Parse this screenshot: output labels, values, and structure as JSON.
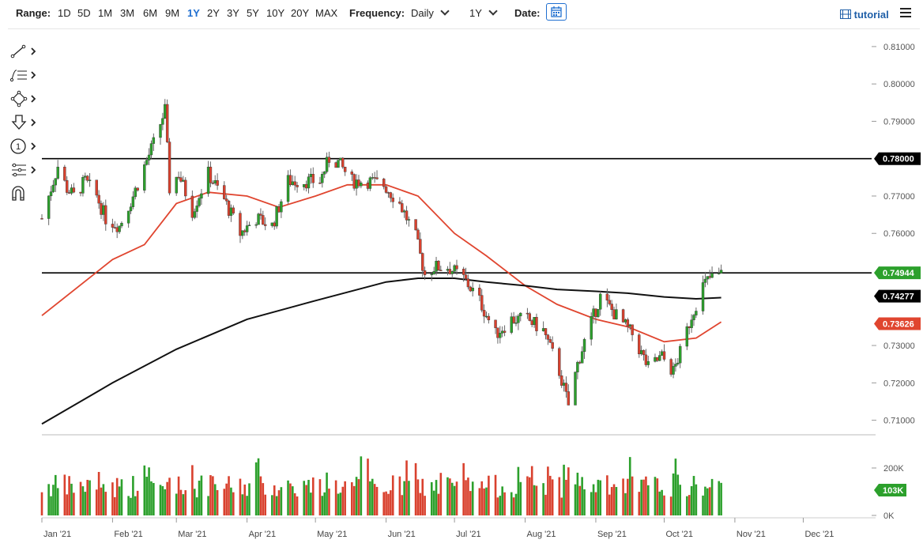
{
  "toolbar": {
    "range_label": "Range:",
    "ranges": [
      "1D",
      "5D",
      "1M",
      "3M",
      "6M",
      "9M",
      "1Y",
      "2Y",
      "3Y",
      "5Y",
      "10Y",
      "20Y",
      "MAX"
    ],
    "active_range": "1Y",
    "frequency_label": "Frequency:",
    "frequency_value": "Daily",
    "period_value": "1Y",
    "date_label": "Date:",
    "tutorial_label": "tutorial"
  },
  "tools": [
    "line-tool-icon",
    "fibonacci-tool-icon",
    "shapes-tool-icon",
    "arrow-tool-icon",
    "annotation-tool-icon",
    "measure-tool-icon",
    "magnet-icon"
  ],
  "colors": {
    "up": "#2ca02c",
    "down": "#d9412e",
    "ma_short": "#e0452f",
    "ma_long": "#111111",
    "level": "#000000",
    "volume_badge": "#2ca02c"
  },
  "chart_data": {
    "type": "candlestick",
    "title": "",
    "frequency": "Daily",
    "range": "1Y",
    "x_ticks": [
      "Jan '21",
      "Feb '21",
      "Mar '21",
      "Apr '21",
      "May '21",
      "Jun '21",
      "Jul '21",
      "Aug '21",
      "Sep '21",
      "Oct '21",
      "Nov '21",
      "Dec '21"
    ],
    "y_ticks": [
      "0.81000",
      "0.80000",
      "0.79000",
      "0.77000",
      "0.76000",
      "0.73000",
      "0.72000",
      "0.71000"
    ],
    "ylim": [
      0.7061,
      0.814
    ],
    "horizontal_levels": [
      0.78,
      0.74944
    ],
    "badges": [
      {
        "label": "0.78000",
        "value": 0.78,
        "color": "#000000"
      },
      {
        "label": "0.74944",
        "value": 0.74944,
        "color": "#2ca02c"
      },
      {
        "label": "0.74277",
        "value": 0.74277,
        "color": "#000000"
      },
      {
        "label": "0.73626",
        "value": 0.73626,
        "color": "#e0452f"
      }
    ],
    "close_series": {
      "dates": [
        "2021-01-01",
        "2021-01-04",
        "2021-01-08",
        "2021-01-12",
        "2021-01-15",
        "2021-01-20",
        "2021-01-25",
        "2021-01-29",
        "2021-02-04",
        "2021-02-10",
        "2021-02-15",
        "2021-02-19",
        "2021-02-24",
        "2021-02-26",
        "2021-03-02",
        "2021-03-08",
        "2021-03-15",
        "2021-03-22",
        "2021-03-29",
        "2021-04-05",
        "2021-04-12",
        "2021-04-19",
        "2021-04-26",
        "2021-05-03",
        "2021-05-07",
        "2021-05-11",
        "2021-05-17",
        "2021-05-24",
        "2021-05-31",
        "2021-06-07",
        "2021-06-14",
        "2021-06-18",
        "2021-06-22",
        "2021-06-28",
        "2021-07-05",
        "2021-07-12",
        "2021-07-19",
        "2021-07-26",
        "2021-08-02",
        "2021-08-09",
        "2021-08-16",
        "2021-08-20",
        "2021-08-24",
        "2021-08-27",
        "2021-09-03",
        "2021-09-10",
        "2021-09-17",
        "2021-09-24",
        "2021-09-30",
        "2021-10-05",
        "2021-10-08",
        "2021-10-13",
        "2021-10-18",
        "2021-10-21",
        "2021-10-26"
      ],
      "values": [
        0.764,
        0.77,
        0.778,
        0.772,
        0.77,
        0.774,
        0.77,
        0.764,
        0.762,
        0.77,
        0.778,
        0.784,
        0.793,
        0.772,
        0.776,
        0.766,
        0.776,
        0.769,
        0.76,
        0.764,
        0.762,
        0.774,
        0.774,
        0.774,
        0.78,
        0.779,
        0.774,
        0.774,
        0.773,
        0.768,
        0.759,
        0.749,
        0.751,
        0.751,
        0.748,
        0.742,
        0.733,
        0.737,
        0.737,
        0.734,
        0.723,
        0.714,
        0.725,
        0.731,
        0.743,
        0.738,
        0.733,
        0.724,
        0.727,
        0.723,
        0.728,
        0.738,
        0.746,
        0.748,
        0.749
      ]
    },
    "series": [
      {
        "name": "",
        "type": "moving-average-short",
        "color": "#e0452f",
        "dates": [
          "2021-01-01",
          "2021-02-01",
          "2021-02-15",
          "2021-03-01",
          "2021-03-15",
          "2021-04-01",
          "2021-04-15",
          "2021-05-01",
          "2021-05-15",
          "2021-06-01",
          "2021-06-15",
          "2021-07-01",
          "2021-07-15",
          "2021-08-01",
          "2021-08-15",
          "2021-09-01",
          "2021-09-15",
          "2021-10-01",
          "2021-10-15",
          "2021-10-26"
        ],
        "values": [
          0.738,
          0.753,
          0.757,
          0.768,
          0.771,
          0.77,
          0.767,
          0.77,
          0.773,
          0.773,
          0.77,
          0.76,
          0.754,
          0.746,
          0.741,
          0.737,
          0.735,
          0.731,
          0.732,
          0.7363
        ]
      },
      {
        "name": "",
        "type": "moving-average-long",
        "color": "#111111",
        "dates": [
          "2021-01-01",
          "2021-02-01",
          "2021-03-01",
          "2021-04-01",
          "2021-05-01",
          "2021-06-01",
          "2021-06-15",
          "2021-07-01",
          "2021-07-15",
          "2021-08-01",
          "2021-08-15",
          "2021-09-01",
          "2021-09-15",
          "2021-10-01",
          "2021-10-15",
          "2021-10-26"
        ],
        "values": [
          0.709,
          0.72,
          0.729,
          0.737,
          0.742,
          0.747,
          0.748,
          0.748,
          0.747,
          0.746,
          0.745,
          0.7445,
          0.744,
          0.743,
          0.7425,
          0.7428
        ]
      }
    ],
    "volume": {
      "y_ticks": [
        "200K",
        "0K"
      ],
      "last_value_label": "103K"
    }
  }
}
